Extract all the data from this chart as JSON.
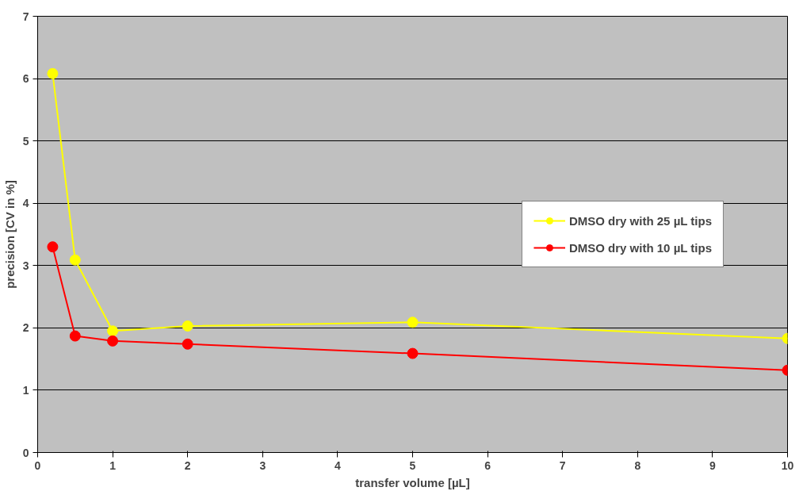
{
  "chart_data": {
    "type": "line",
    "xlabel": "transfer volume [µL]",
    "ylabel": "precision [CV in %]",
    "x": [
      0.2,
      0.5,
      1,
      2,
      5,
      10
    ],
    "series": [
      {
        "name": "DMSO dry with 25 µL tips",
        "color": "#ffff00",
        "values": [
          6.08,
          3.09,
          1.95,
          2.03,
          2.09,
          1.83
        ]
      },
      {
        "name": "DMSO dry with 10 µL tips",
        "color": "#ff0000",
        "values": [
          3.3,
          1.87,
          1.79,
          1.74,
          1.59,
          1.32
        ]
      }
    ],
    "xlim": [
      0,
      10
    ],
    "ylim": [
      0,
      7
    ],
    "xticks": [
      0,
      1,
      2,
      3,
      4,
      5,
      6,
      7,
      8,
      9,
      10
    ],
    "yticks": [
      0,
      1,
      2,
      3,
      4,
      5,
      6,
      7
    ],
    "grid": "y",
    "legend": "right",
    "marker": "circle",
    "line_style": "solid"
  }
}
